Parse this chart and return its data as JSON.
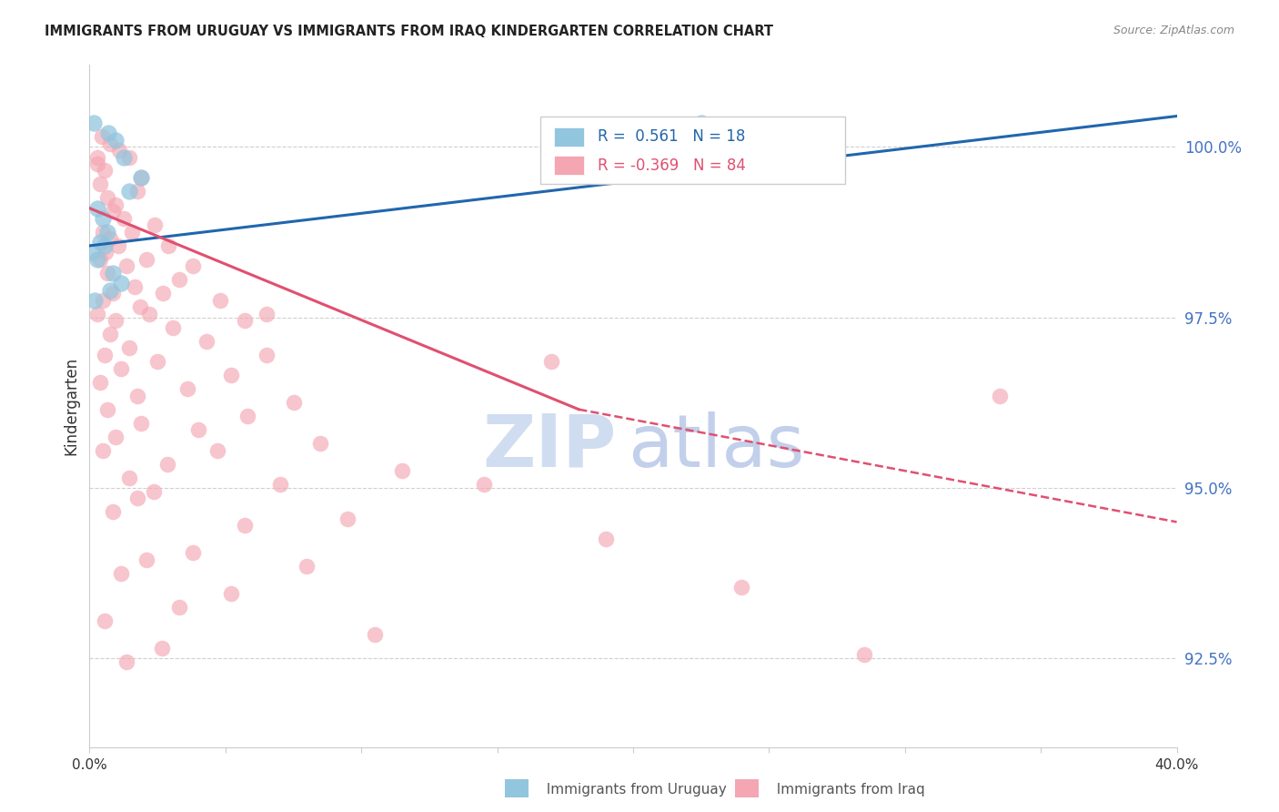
{
  "title": "IMMIGRANTS FROM URUGUAY VS IMMIGRANTS FROM IRAQ KINDERGARTEN CORRELATION CHART",
  "source": "Source: ZipAtlas.com",
  "ylabel": "Kindergarten",
  "ytick_values": [
    92.5,
    95.0,
    97.5,
    100.0
  ],
  "xmin": 0.0,
  "xmax": 40.0,
  "ymin": 91.2,
  "ymax": 101.2,
  "legend_r_uruguay": "0.561",
  "legend_n_uruguay": "18",
  "legend_r_iraq": "-0.369",
  "legend_n_iraq": "84",
  "uruguay_color": "#92c5de",
  "iraq_color": "#f4a6b2",
  "trend_uruguay_color": "#2166ac",
  "trend_iraq_color": "#e05070",
  "watermark_color": "#cdd9f0",
  "trend_uruguay_x0": 0.0,
  "trend_uruguay_x1": 40.0,
  "trend_uruguay_y0": 98.55,
  "trend_uruguay_y1": 100.45,
  "trend_iraq_solid_x0": 0.0,
  "trend_iraq_solid_x1": 18.0,
  "trend_iraq_solid_y0": 99.1,
  "trend_iraq_solid_y1": 96.15,
  "trend_iraq_dashed_x0": 18.0,
  "trend_iraq_dashed_x1": 40.0,
  "trend_iraq_dashed_y0": 96.15,
  "trend_iraq_dashed_y1": 94.5,
  "uruguay_scatter": [
    [
      0.15,
      100.35
    ],
    [
      0.7,
      100.2
    ],
    [
      0.95,
      100.1
    ],
    [
      1.25,
      99.85
    ],
    [
      1.9,
      99.55
    ],
    [
      0.3,
      99.1
    ],
    [
      0.5,
      98.95
    ],
    [
      0.65,
      98.75
    ],
    [
      0.4,
      98.6
    ],
    [
      0.55,
      98.55
    ],
    [
      0.1,
      98.45
    ],
    [
      0.28,
      98.35
    ],
    [
      0.85,
      98.15
    ],
    [
      1.45,
      99.35
    ],
    [
      0.75,
      97.9
    ],
    [
      1.15,
      98.0
    ],
    [
      22.5,
      100.35
    ],
    [
      0.18,
      97.75
    ]
  ],
  "iraq_scatter": [
    [
      0.45,
      100.15
    ],
    [
      0.75,
      100.05
    ],
    [
      1.1,
      99.95
    ],
    [
      1.45,
      99.85
    ],
    [
      0.28,
      99.75
    ],
    [
      0.55,
      99.65
    ],
    [
      1.9,
      99.55
    ],
    [
      0.38,
      99.45
    ],
    [
      1.75,
      99.35
    ],
    [
      0.65,
      99.25
    ],
    [
      0.95,
      99.15
    ],
    [
      0.85,
      99.05
    ],
    [
      1.25,
      98.95
    ],
    [
      2.4,
      98.85
    ],
    [
      0.48,
      98.75
    ],
    [
      1.55,
      98.75
    ],
    [
      0.75,
      98.65
    ],
    [
      2.9,
      98.55
    ],
    [
      1.05,
      98.55
    ],
    [
      0.58,
      98.45
    ],
    [
      2.1,
      98.35
    ],
    [
      0.38,
      98.35
    ],
    [
      1.35,
      98.25
    ],
    [
      3.8,
      98.25
    ],
    [
      0.65,
      98.15
    ],
    [
      3.3,
      98.05
    ],
    [
      1.65,
      97.95
    ],
    [
      0.85,
      97.85
    ],
    [
      2.7,
      97.85
    ],
    [
      4.8,
      97.75
    ],
    [
      0.48,
      97.75
    ],
    [
      1.85,
      97.65
    ],
    [
      0.28,
      97.55
    ],
    [
      2.2,
      97.55
    ],
    [
      5.7,
      97.45
    ],
    [
      0.95,
      97.45
    ],
    [
      3.05,
      97.35
    ],
    [
      0.75,
      97.25
    ],
    [
      4.3,
      97.15
    ],
    [
      1.45,
      97.05
    ],
    [
      6.5,
      96.95
    ],
    [
      0.55,
      96.95
    ],
    [
      2.5,
      96.85
    ],
    [
      1.15,
      96.75
    ],
    [
      5.2,
      96.65
    ],
    [
      0.38,
      96.55
    ],
    [
      3.6,
      96.45
    ],
    [
      1.75,
      96.35
    ],
    [
      7.5,
      96.25
    ],
    [
      0.65,
      96.15
    ],
    [
      5.8,
      96.05
    ],
    [
      1.9,
      95.95
    ],
    [
      4.0,
      95.85
    ],
    [
      0.95,
      95.75
    ],
    [
      8.5,
      95.65
    ],
    [
      0.48,
      95.55
    ],
    [
      4.7,
      95.55
    ],
    [
      2.85,
      95.35
    ],
    [
      11.5,
      95.25
    ],
    [
      1.45,
      95.15
    ],
    [
      7.0,
      95.05
    ],
    [
      2.35,
      94.95
    ],
    [
      14.5,
      95.05
    ],
    [
      9.5,
      94.55
    ],
    [
      1.75,
      94.85
    ],
    [
      0.85,
      94.65
    ],
    [
      5.7,
      94.45
    ],
    [
      19.0,
      94.25
    ],
    [
      3.8,
      94.05
    ],
    [
      2.1,
      93.95
    ],
    [
      8.0,
      93.85
    ],
    [
      1.15,
      93.75
    ],
    [
      24.0,
      93.55
    ],
    [
      5.2,
      93.45
    ],
    [
      3.3,
      93.25
    ],
    [
      0.55,
      93.05
    ],
    [
      10.5,
      92.85
    ],
    [
      2.65,
      92.65
    ],
    [
      28.5,
      92.55
    ],
    [
      1.35,
      92.45
    ],
    [
      17.0,
      96.85
    ],
    [
      33.5,
      96.35
    ],
    [
      6.5,
      97.55
    ],
    [
      0.28,
      99.85
    ]
  ]
}
